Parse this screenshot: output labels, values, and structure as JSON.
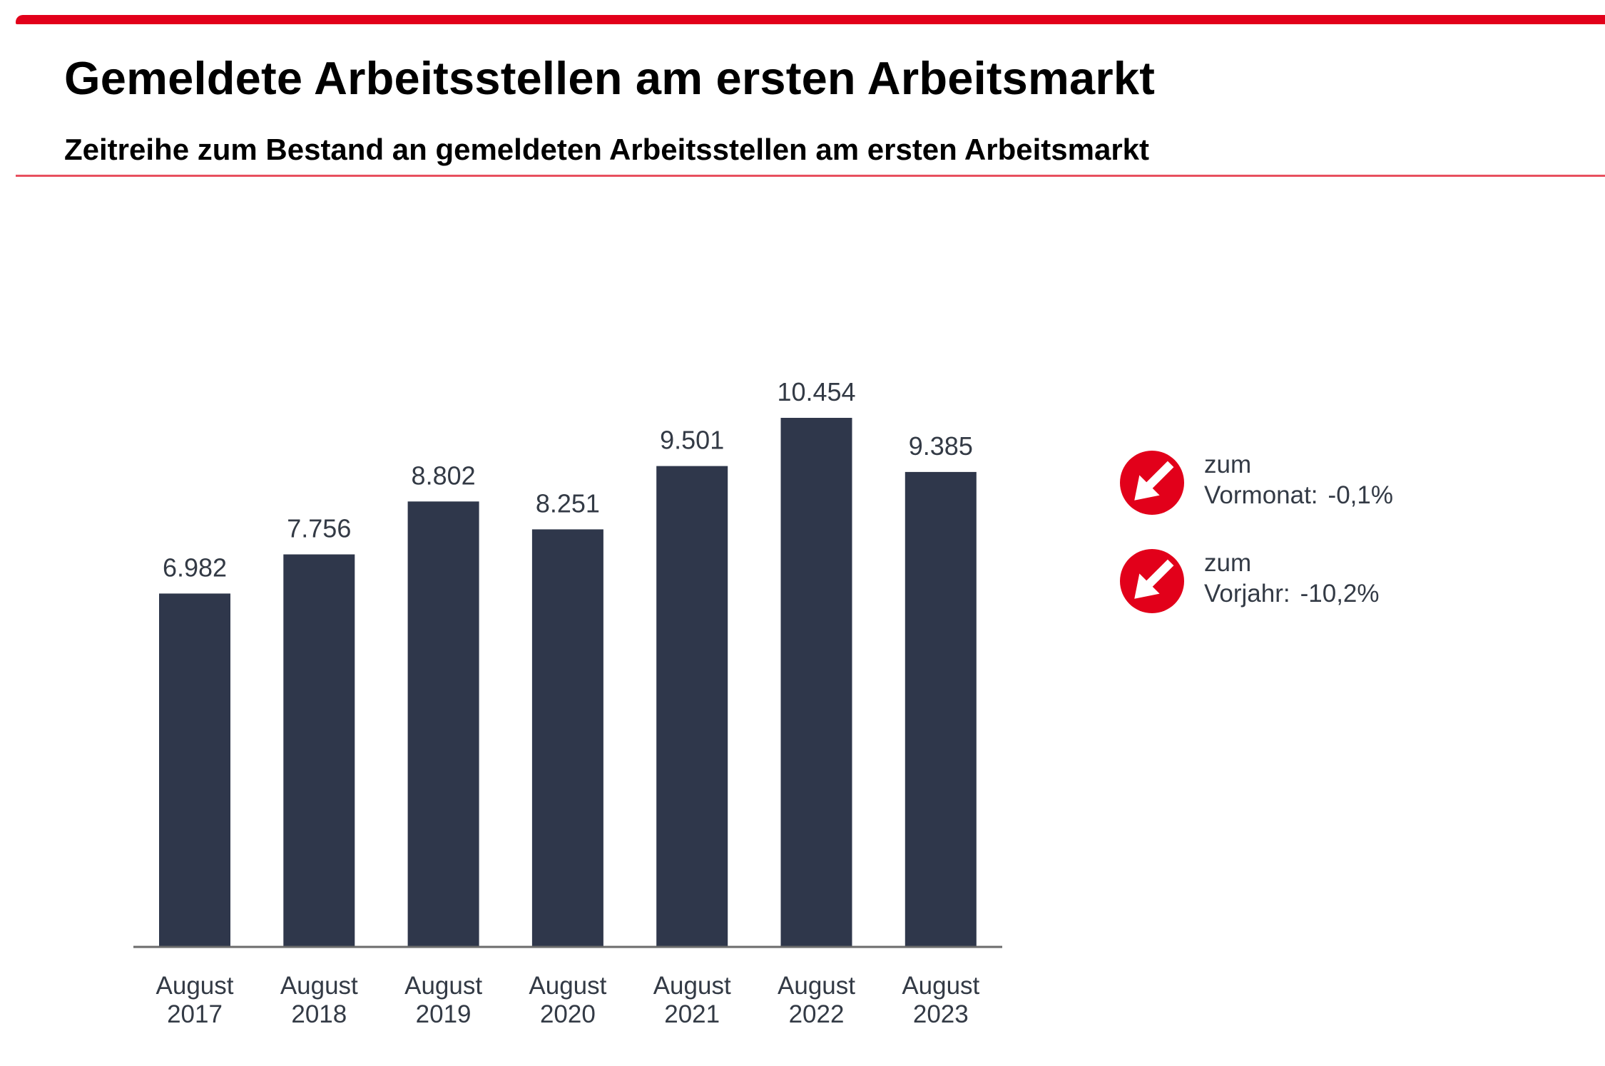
{
  "header": {
    "title": "Gemeldete Arbeitsstellen am ersten Arbeitsmarkt",
    "subtitle": "Zeitreihe zum Bestand an gemeldeten Arbeitsstellen am ersten Arbeitsmarkt",
    "accent_color": "#e2001a"
  },
  "chart_data": {
    "type": "bar",
    "title": "Gemeldete Arbeitsstellen am ersten Arbeitsmarkt",
    "subtitle": "Zeitreihe zum Bestand an gemeldeten Arbeitsstellen am ersten Arbeitsmarkt",
    "categories": [
      [
        "August",
        "2017"
      ],
      [
        "August",
        "2018"
      ],
      [
        "August",
        "2019"
      ],
      [
        "August",
        "2020"
      ],
      [
        "August",
        "2021"
      ],
      [
        "August",
        "2022"
      ],
      [
        "August",
        "2023"
      ]
    ],
    "values": [
      6982,
      7756,
      8802,
      8251,
      9501,
      10454,
      9385
    ],
    "value_labels": [
      "6.982",
      "7.756",
      "8.802",
      "8.251",
      "9.501",
      "10.454",
      "9.385"
    ],
    "xlabel": "",
    "ylabel": "",
    "ylim": [
      0,
      10454
    ],
    "grid": false,
    "legend": "none",
    "bar_color": "#2f374b",
    "axis_color": "#6b6b6b"
  },
  "kpis": [
    {
      "icon": "arrow-down-right-icon",
      "line1": "zum",
      "label": "Vormonat:",
      "value": "-0,1%",
      "color": "#e2001a"
    },
    {
      "icon": "arrow-down-right-icon",
      "line1": "zum",
      "label": "Vorjahr:",
      "value": "-10,2%",
      "color": "#e2001a"
    }
  ]
}
